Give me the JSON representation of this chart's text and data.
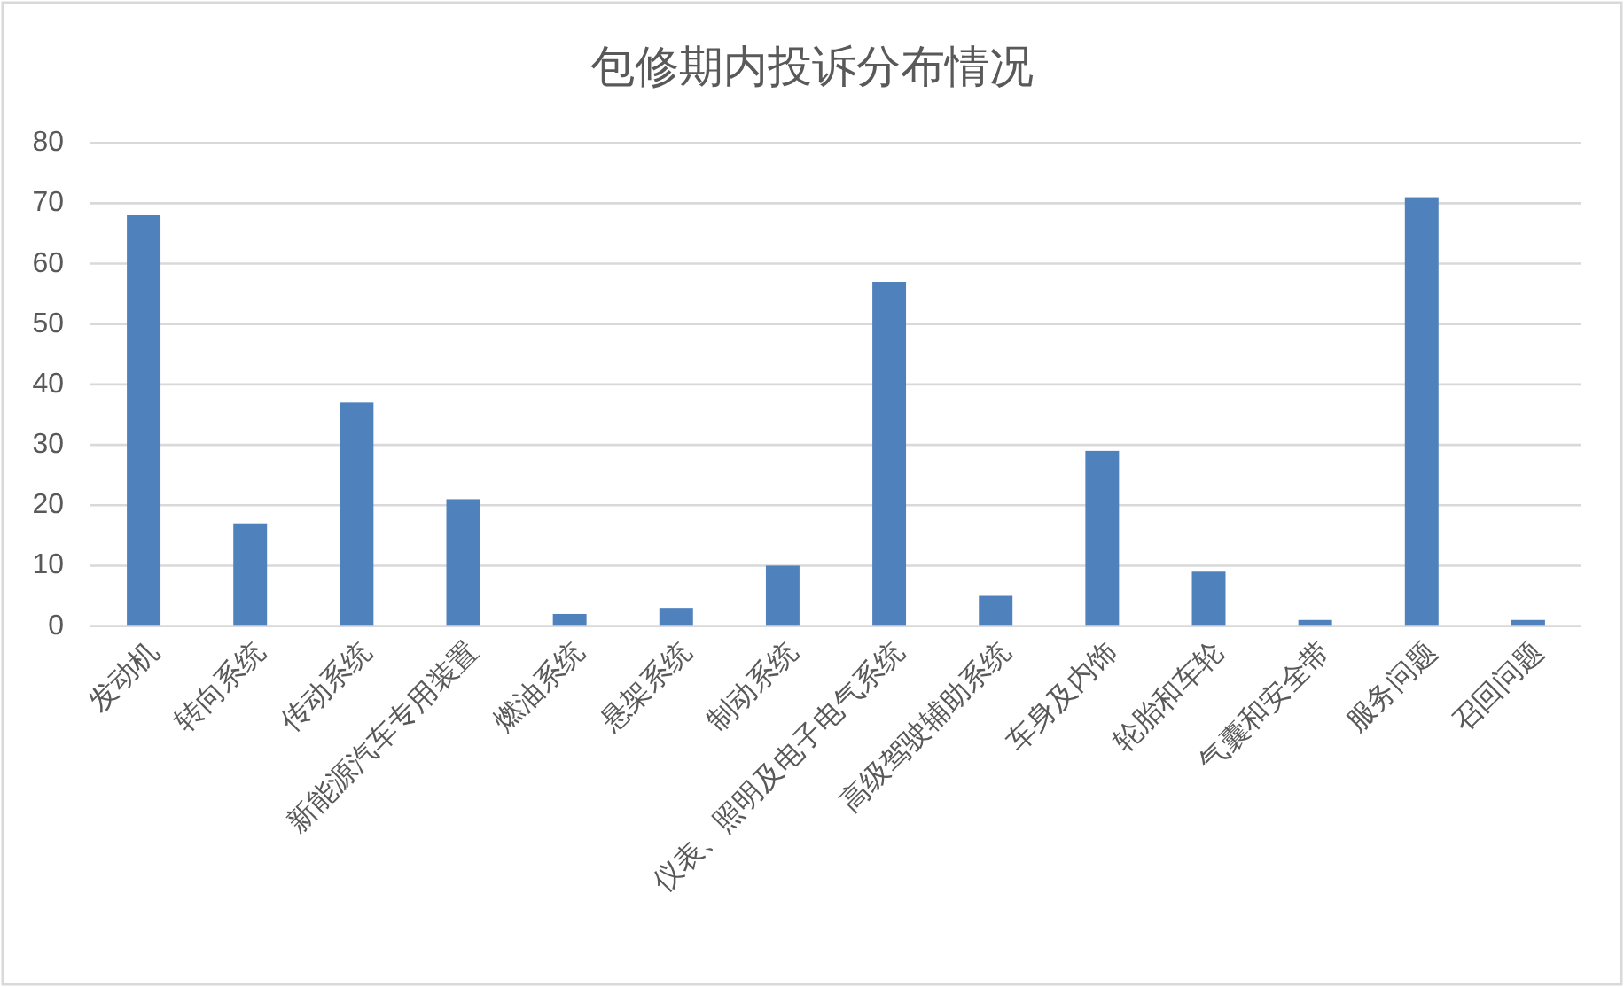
{
  "chart_data": {
    "type": "bar",
    "title": "包修期内投诉分布情况",
    "categories": [
      "发动机",
      "转向系统",
      "传动系统",
      "新能源汽车专用装置",
      "燃油系统",
      "悬架系统",
      "制动系统",
      "仪表、照明及电子电气系统",
      "高级驾驶辅助系统",
      "车身及内饰",
      "轮胎和车轮",
      "气囊和安全带",
      "服务问题",
      "召回问题"
    ],
    "values": [
      68,
      17,
      37,
      21,
      2,
      3,
      10,
      57,
      5,
      29,
      9,
      1,
      71,
      1
    ],
    "color": "#4f81bd",
    "ylim": [
      0,
      80
    ],
    "yticks": [
      0,
      10,
      20,
      30,
      40,
      50,
      60,
      70,
      80
    ],
    "grid": "y"
  }
}
